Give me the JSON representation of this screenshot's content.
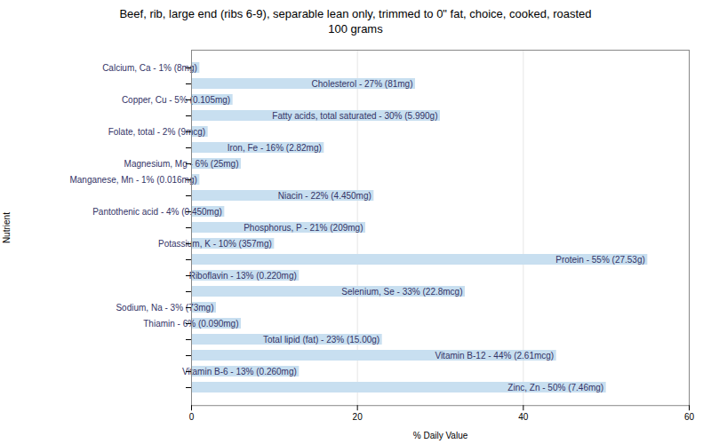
{
  "chart_data": {
    "type": "bar",
    "orientation": "horizontal",
    "title": "Beef, rib, large end (ribs 6-9), separable lean only, trimmed to 0\" fat, choice, cooked, roasted\n100 grams",
    "x_label": "% Daily Value",
    "y_label": "Nutrient",
    "categories": [
      "Calcium, Ca - 1% (8mg)",
      "Cholesterol - 27% (81mg)",
      "Copper, Cu - 5% (0.105mg)",
      "Fatty acids, total saturated - 30% (5.990g)",
      "Folate, total - 2% (9mcg)",
      "Iron, Fe - 16% (2.82mg)",
      "Magnesium, Mg - 6% (25mg)",
      "Manganese, Mn - 1% (0.016mg)",
      "Niacin - 22% (4.450mg)",
      "Pantothenic acid - 4% (0.450mg)",
      "Phosphorus, P - 21% (209mg)",
      "Potassium, K - 10% (357mg)",
      "Protein - 55% (27.53g)",
      "Riboflavin - 13% (0.220mg)",
      "Selenium, Se - 33% (22.8mcg)",
      "Sodium, Na - 3% (73mg)",
      "Thiamin - 6% (0.090mg)",
      "Total lipid (fat) - 23% (15.00g)",
      "Vitamin B-12 - 44% (2.61mcg)",
      "Vitamin B-6 - 13% (0.260mg)",
      "Zinc, Zn - 50% (7.46mg)"
    ],
    "values": [
      1,
      27,
      5,
      30,
      2,
      16,
      6,
      1,
      22,
      4,
      21,
      10,
      55,
      13,
      33,
      3,
      6,
      23,
      44,
      13,
      50
    ],
    "color": "#c8dff0",
    "xlim": [
      0,
      60
    ],
    "xticks": [
      0,
      20,
      40,
      60
    ],
    "grid": true,
    "tick_labels": "x"
  }
}
